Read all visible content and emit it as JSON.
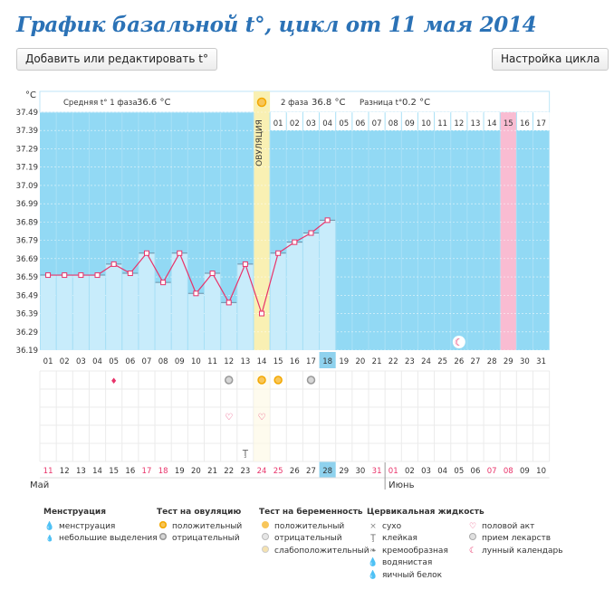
{
  "page": {
    "title": "График базальной t°, цикл от 11 мая 2014"
  },
  "toolbar": {
    "add_label": "Добавить или редактировать t°",
    "settings_label": "Настройка цикла"
  },
  "colors": {
    "blue": "#92d9f4",
    "light": "#c8ecfb",
    "ovulation": "#f9f0b3",
    "pink": "#f9bcd2",
    "line": "#e8336a",
    "highlight": "#8fd2ee"
  },
  "chart_data": {
    "type": "line",
    "title": "График базальной t°",
    "ylabel": "°C",
    "ylim": [
      36.19,
      37.49
    ],
    "yticks": [
      "37.49",
      "37.39",
      "37.29",
      "37.19",
      "37.09",
      "36.99",
      "36.89",
      "36.79",
      "36.69",
      "36.59",
      "36.49",
      "36.39",
      "36.29",
      "36.19"
    ],
    "days": [
      "01",
      "02",
      "03",
      "04",
      "05",
      "06",
      "07",
      "08",
      "09",
      "10",
      "11",
      "12",
      "13",
      "14",
      "15",
      "16",
      "17",
      "18",
      "19",
      "20",
      "21",
      "22",
      "23",
      "24",
      "25",
      "26",
      "27",
      "28",
      "29",
      "30",
      "31"
    ],
    "temperatures": [
      36.6,
      36.6,
      36.6,
      36.6,
      36.66,
      36.61,
      36.72,
      36.56,
      36.72,
      36.5,
      36.61,
      36.45,
      36.66,
      36.39,
      36.72,
      36.78,
      36.83,
      36.9
    ],
    "ovulation_day": 14,
    "today_day": 18,
    "phase1_label": "Средняя t° 1 фаза",
    "phase1_value": "36.6 °C",
    "phase2_label": "2 фаза",
    "phase2_value": "36.8 °C",
    "diff_label": "Разница t°",
    "diff_value": "0.2 °C",
    "ovulation_label": "ОВУЛЯЦИЯ",
    "phase2_days": [
      "01",
      "02",
      "03",
      "04",
      "05",
      "06",
      "07",
      "08",
      "09",
      "10",
      "11",
      "12",
      "13",
      "14",
      "15",
      "16",
      "17"
    ],
    "expected_menstruation_day": 29,
    "moon_day": 26,
    "dates": [
      {
        "d": "11",
        "red": true
      },
      {
        "d": "12"
      },
      {
        "d": "13"
      },
      {
        "d": "14"
      },
      {
        "d": "15"
      },
      {
        "d": "16"
      },
      {
        "d": "17",
        "red": true
      },
      {
        "d": "18",
        "red": true
      },
      {
        "d": "19"
      },
      {
        "d": "20"
      },
      {
        "d": "21"
      },
      {
        "d": "22"
      },
      {
        "d": "23"
      },
      {
        "d": "24",
        "red": true
      },
      {
        "d": "25",
        "red": true
      },
      {
        "d": "26"
      },
      {
        "d": "27"
      },
      {
        "d": "28"
      },
      {
        "d": "29"
      },
      {
        "d": "30"
      },
      {
        "d": "31",
        "red": true
      },
      {
        "d": "01",
        "red": true
      },
      {
        "d": "02"
      },
      {
        "d": "03"
      },
      {
        "d": "04"
      },
      {
        "d": "05"
      },
      {
        "d": "06"
      },
      {
        "d": "07",
        "red": true
      },
      {
        "d": "08",
        "red": true
      },
      {
        "d": "09"
      },
      {
        "d": "10"
      }
    ],
    "month1": "Май",
    "month2": "Июнь",
    "markers": [
      {
        "day": 5,
        "row": 0,
        "kind": "drop"
      },
      {
        "day": 12,
        "row": 0,
        "kind": "neg"
      },
      {
        "day": 14,
        "row": 0,
        "kind": "pos"
      },
      {
        "day": 15,
        "row": 0,
        "kind": "pos"
      },
      {
        "day": 17,
        "row": 0,
        "kind": "neg"
      },
      {
        "day": 12,
        "row": 2,
        "kind": "heart"
      },
      {
        "day": 14,
        "row": 2,
        "kind": "heart"
      },
      {
        "day": 13,
        "row": 4,
        "kind": "sticky"
      }
    ]
  },
  "legend": {
    "menstruation": {
      "title": "Менструация",
      "items": [
        "менструация",
        "небольшие выделения"
      ]
    },
    "ovulation_test": {
      "title": "Тест на овуляцию",
      "items": [
        "положительный",
        "отрицательный"
      ]
    },
    "pregnancy_test": {
      "title": "Тест на беременность",
      "items": [
        "положительный",
        "отрицательный",
        "слабоположительный"
      ]
    },
    "cervical": {
      "title": "Цервикальная жидкость",
      "items": [
        "сухо",
        "клейкая",
        "кремообразная",
        "водянистая",
        "яичный белок"
      ]
    },
    "other": {
      "items": [
        "половой акт",
        "прием лекарств",
        "лунный календарь"
      ]
    }
  },
  "icons": {
    "dry": "×",
    "sticky": "Ţ",
    "heart": "♡"
  }
}
